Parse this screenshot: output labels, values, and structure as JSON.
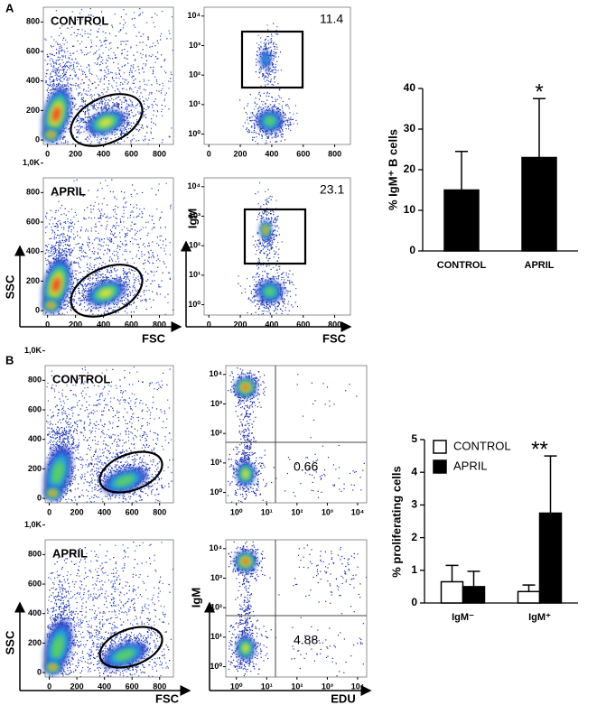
{
  "flow": {
    "panel_labels": [
      "A",
      "B"
    ],
    "axis_labels": {
      "ssc": "SSC",
      "fsc": "FSC",
      "igm": "IgM",
      "edu": "EDU"
    },
    "linear_lim": [
      -30,
      900
    ],
    "log_lim": [
      -0.35,
      4.3
    ],
    "linear_xticks": [
      0,
      200,
      400,
      600,
      800
    ],
    "linear_yticks": [
      0,
      200,
      400,
      600,
      800,
      {
        "value": 1000,
        "label": "1,0K"
      }
    ],
    "log_ticks": [
      {
        "value": 0,
        "label": "10⁰"
      },
      {
        "value": 1,
        "label": "10¹"
      },
      {
        "value": 2,
        "label": "10²"
      },
      {
        "value": 3,
        "label": "10³"
      },
      {
        "value": 4,
        "label": "10⁴"
      }
    ],
    "plots": [
      {
        "label": "CONTROL"
      },
      {
        "gate_value": 11.4
      },
      {
        "label": "APRIL"
      },
      {
        "gate_value": 23.1
      },
      {
        "label": "CONTROL"
      },
      {
        "gate_value": 0.66
      },
      {
        "label": "APRIL"
      },
      {
        "gate_value": 4.88
      }
    ]
  },
  "chart_data": [
    {
      "type": "bar",
      "ylabel": "% IgM⁺ B cells",
      "categories": [
        "CONTROL",
        "APRIL"
      ],
      "values": [
        15,
        23
      ],
      "errors": [
        9.5,
        14.5
      ],
      "color": "#000000",
      "ylim": [
        0,
        40
      ],
      "yticks": [
        0,
        10,
        20,
        30,
        40
      ],
      "significance_labels": [
        null,
        "*"
      ]
    },
    {
      "type": "grouped_bar",
      "ylabel": "% proliferating cells",
      "categories": [
        "IgM⁻",
        "IgM⁺"
      ],
      "series": [
        {
          "name": "CONTROL",
          "color": "#ffffff",
          "values": [
            0.65,
            0.35
          ],
          "errors": [
            0.5,
            0.2
          ]
        },
        {
          "name": "APRIL",
          "color": "#000000",
          "values": [
            0.5,
            2.75
          ],
          "errors": [
            0.47,
            1.75
          ]
        }
      ],
      "ylim": [
        0,
        5
      ],
      "yticks": [
        0,
        1,
        2,
        3,
        4,
        5
      ],
      "significance_labels": [
        null,
        "**"
      ],
      "legend": "top-left"
    }
  ]
}
